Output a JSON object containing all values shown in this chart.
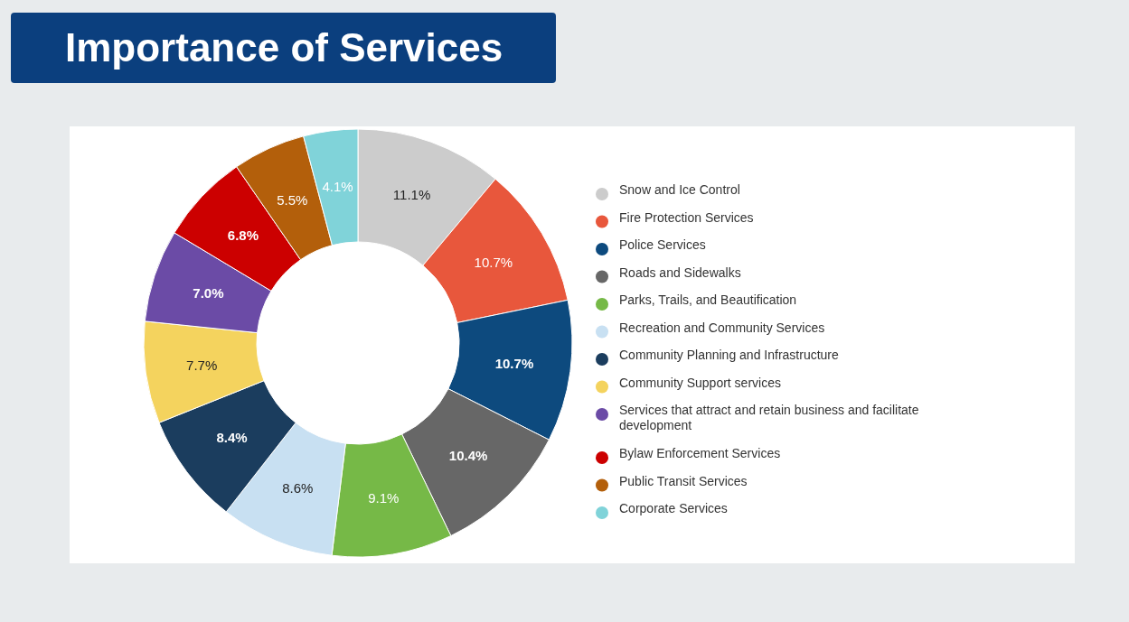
{
  "chart_data": {
    "type": "donut",
    "title": "Importance of Services",
    "categories": [
      "Snow and Ice Control",
      "Fire Protection Services",
      "Police Services",
      "Roads and Sidewalks",
      "Parks, Trails, and Beautification",
      "Recreation and Community Services",
      "Community Planning and Infrastructure",
      "Community Support services",
      "Services that attract and retain business and facilitate development",
      "Bylaw Enforcement Services",
      "Public Transit Services",
      "Corporate Services"
    ],
    "values": [
      11.1,
      10.7,
      10.7,
      10.4,
      9.1,
      8.6,
      8.4,
      7.7,
      7.0,
      6.8,
      5.5,
      4.1
    ],
    "colors": [
      "#cccccc",
      "#e8573c",
      "#0d4a7e",
      "#676767",
      "#76b947",
      "#c8e0f2",
      "#1b3d5e",
      "#f4d35e",
      "#6b4ba6",
      "#cc0000",
      "#b35f0b",
      "#80d3d9"
    ],
    "value_labels": [
      "11.1%",
      "10.7%",
      "10.7%",
      "10.4%",
      "9.1%",
      "8.6%",
      "8.4%",
      "7.7%",
      "7.0%",
      "6.8%",
      "5.5%",
      "4.1%"
    ],
    "legend": "right"
  }
}
